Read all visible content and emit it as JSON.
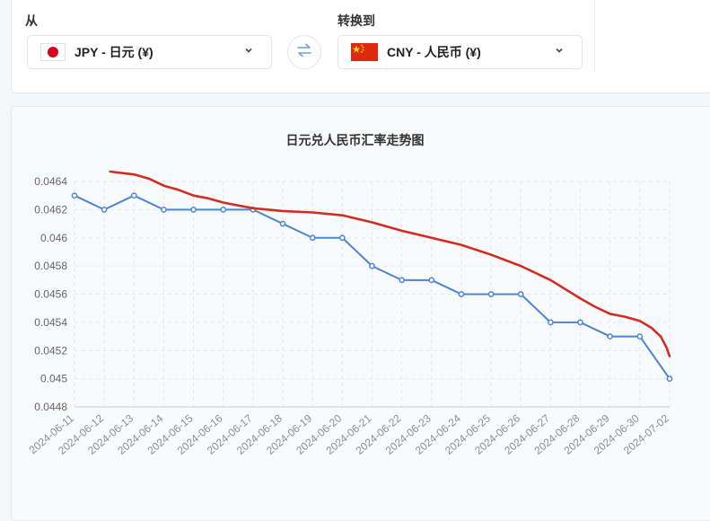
{
  "converter": {
    "from_label": "从",
    "to_label": "转换到",
    "from_currency": "JPY - 日元 (¥)",
    "to_currency": "CNY - 人民币 (¥)",
    "from_flag": "jp-flag-icon",
    "to_flag": "cn-flag-icon",
    "swap_icon": "swap-arrows-icon",
    "chevron_icon": "chevron-down-icon"
  },
  "colors": {
    "series_blue": "#4a86d8",
    "series_red": "#d22d22",
    "grid": "#e3e6ec",
    "swap_icon": "#6f9de0"
  },
  "chart_data": {
    "type": "line",
    "title": "日元兑人民币汇率走势图",
    "xlabel": "",
    "ylabel": "",
    "categories": [
      "2024-06-11",
      "2024-06-12",
      "2024-06-13",
      "2024-06-14",
      "2024-06-15",
      "2024-06-16",
      "2024-06-17",
      "2024-06-18",
      "2024-06-19",
      "2024-06-20",
      "2024-06-21",
      "2024-06-22",
      "2024-06-23",
      "2024-06-24",
      "2024-06-25",
      "2024-06-26",
      "2024-06-27",
      "2024-06-28",
      "2024-06-29",
      "2024-06-30",
      "2024-07-02"
    ],
    "y_ticks": [
      "0.0448",
      "0.045",
      "0.0452",
      "0.0454",
      "0.0456",
      "0.0458",
      "0.046",
      "0.0462",
      "0.0464"
    ],
    "ylim": [
      0.0448,
      0.0464
    ],
    "grid": true,
    "series": [
      {
        "color": "#4a86d8",
        "markers": true,
        "values": [
          0.0463,
          0.0462,
          0.0463,
          0.0462,
          0.0462,
          0.0462,
          0.0462,
          0.0461,
          0.046,
          0.046,
          0.0458,
          0.0457,
          0.0457,
          0.0456,
          0.0456,
          0.0456,
          0.0454,
          0.0454,
          0.0453,
          0.0453,
          0.045
        ]
      },
      {
        "color": "#d22d22",
        "markers": false,
        "points": [
          [
            1.2,
            0.04647
          ],
          [
            2.0,
            0.04645
          ],
          [
            2.5,
            0.04642
          ],
          [
            3.0,
            0.04637
          ],
          [
            3.5,
            0.04634
          ],
          [
            4.0,
            0.0463
          ],
          [
            4.5,
            0.04628
          ],
          [
            5.0,
            0.04625
          ],
          [
            6.0,
            0.04621
          ],
          [
            7.0,
            0.04619
          ],
          [
            8.0,
            0.04618
          ],
          [
            9.0,
            0.04616
          ],
          [
            10.0,
            0.04611
          ],
          [
            11.0,
            0.04605
          ],
          [
            12.0,
            0.046
          ],
          [
            13.0,
            0.04595
          ],
          [
            14.0,
            0.04588
          ],
          [
            15.0,
            0.0458
          ],
          [
            16.0,
            0.0457
          ],
          [
            17.0,
            0.04557
          ],
          [
            17.5,
            0.04551
          ],
          [
            18.0,
            0.04546
          ],
          [
            18.5,
            0.04544
          ],
          [
            19.0,
            0.04541
          ],
          [
            19.4,
            0.04536
          ],
          [
            19.7,
            0.0453
          ],
          [
            19.9,
            0.04522
          ],
          [
            20.0,
            0.04516
          ]
        ]
      }
    ]
  }
}
